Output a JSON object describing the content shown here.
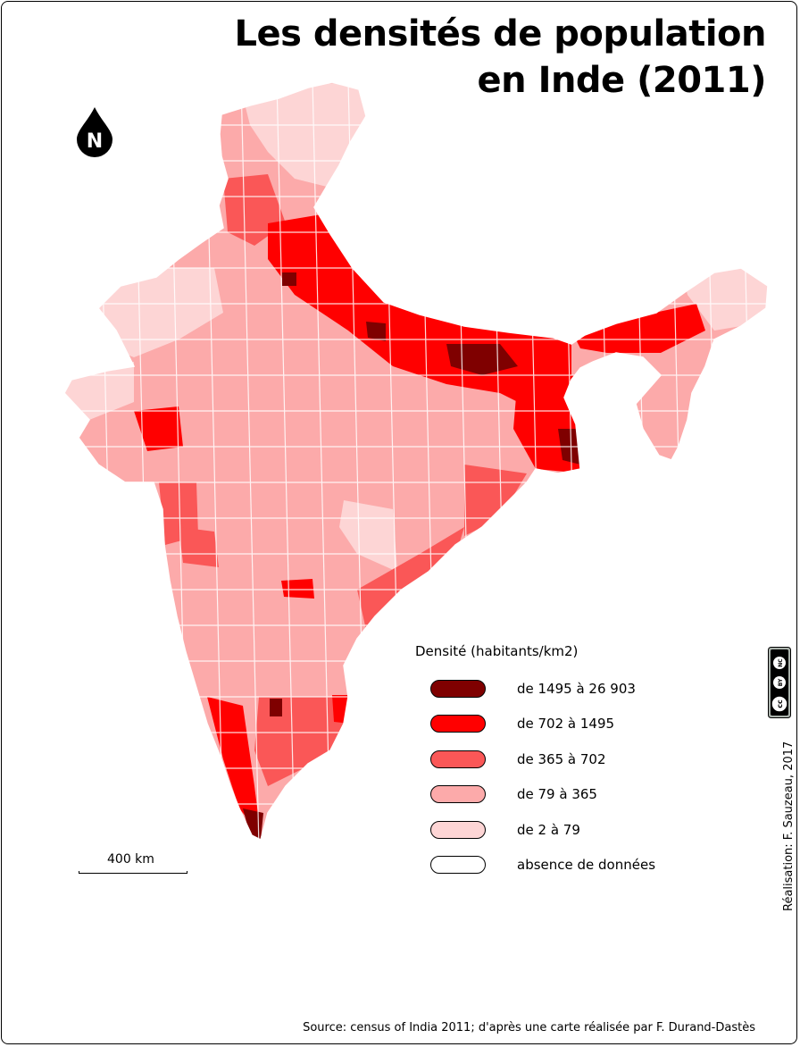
{
  "title": {
    "line1": "Les densités de population",
    "line2": "en Inde (2011)"
  },
  "north_arrow": {
    "label": "N",
    "icon": "north-arrow-icon"
  },
  "legend": {
    "title": "Densité (habitants/km2)",
    "classes": [
      {
        "label": "de 1495 à 26 903",
        "color": "#7f0000"
      },
      {
        "label": "de  702 à 1495",
        "color": "#ff0000"
      },
      {
        "label": "de 365 à 702",
        "color": "#fa5757"
      },
      {
        "label": "de 79 à 365",
        "color": "#fcaaaa"
      },
      {
        "label": "de 2 à 79",
        "color": "#fdd5d5"
      },
      {
        "label": "absence de données",
        "color": "#ffffff"
      }
    ]
  },
  "scale": {
    "label": "400 km"
  },
  "credit": "Réalisation: F. Sauzeau, 2017",
  "license": {
    "icon": "creative-commons-by-nc-icon",
    "labels": [
      "cc",
      "BY",
      "NC"
    ]
  },
  "source": "Source: census of India 2011; d'après une carte réalisée par F. Durand-Dastès"
}
